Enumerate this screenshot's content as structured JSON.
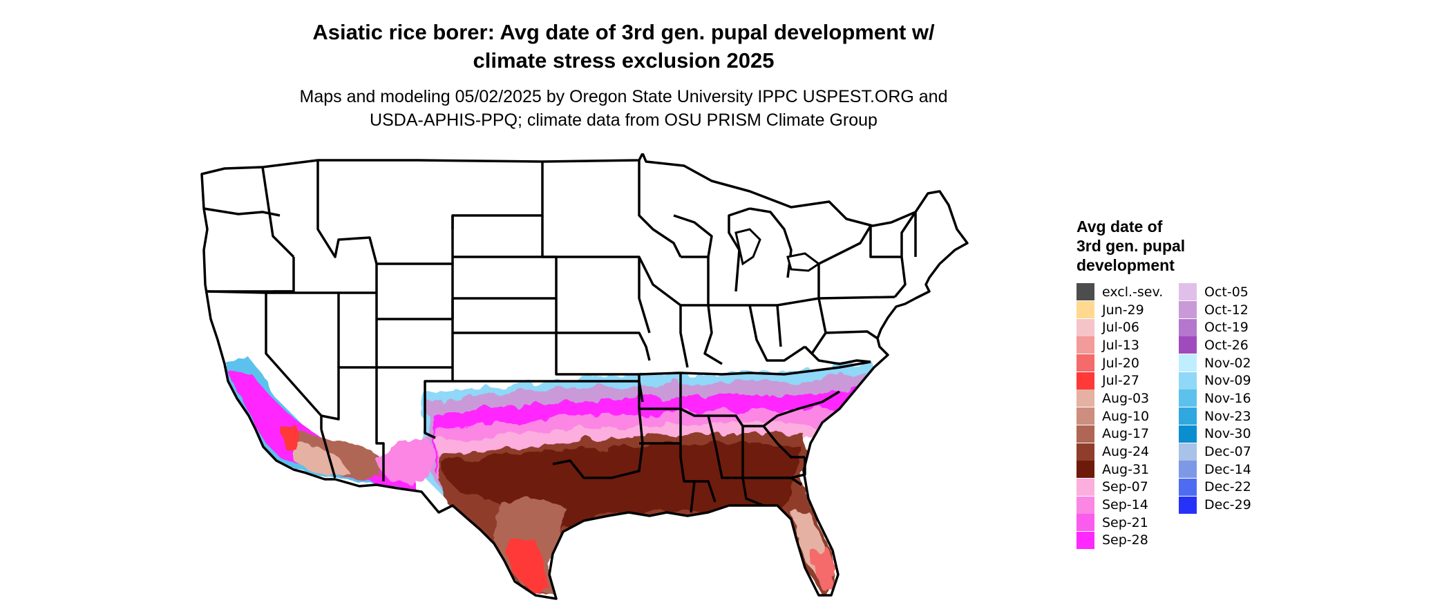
{
  "title_lines": [
    "Asiatic rice borer: Avg date of 3rd gen. pupal development w/",
    "climate stress exclusion 2025"
  ],
  "subtitle_lines": [
    "Maps and modeling 05/02/2025 by Oregon State University IPPC USPEST.ORG and",
    "USDA-APHIS-PPQ; climate data from OSU PRISM Climate Group"
  ],
  "legend": {
    "title_lines": [
      "Avg date of",
      "3rd gen. pupal",
      "development"
    ],
    "column1": [
      {
        "label": "excl.-sev.",
        "color": "#4d4d4d"
      },
      {
        "label": "Jun-29",
        "color": "#ffd98f"
      },
      {
        "label": "Jul-06",
        "color": "#f5c4c9"
      },
      {
        "label": "Jul-13",
        "color": "#f39a9a"
      },
      {
        "label": "Jul-20",
        "color": "#f56a6a"
      },
      {
        "label": "Jul-27",
        "color": "#ff3838"
      },
      {
        "label": "Aug-03",
        "color": "#e4b1a3"
      },
      {
        "label": "Aug-10",
        "color": "#cd8e7f"
      },
      {
        "label": "Aug-17",
        "color": "#b06654"
      },
      {
        "label": "Aug-24",
        "color": "#8f3e2b"
      },
      {
        "label": "Aug-31",
        "color": "#6e1a0a"
      },
      {
        "label": "Sep-07",
        "color": "#fcaedf"
      },
      {
        "label": "Sep-14",
        "color": "#fb86e4"
      },
      {
        "label": "Sep-21",
        "color": "#fa5ced"
      },
      {
        "label": "Sep-28",
        "color": "#ff28ff"
      }
    ],
    "column2": [
      {
        "label": "Oct-05",
        "color": "#e0c0e8"
      },
      {
        "label": "Oct-12",
        "color": "#c99ad7"
      },
      {
        "label": "Oct-19",
        "color": "#b477cd"
      },
      {
        "label": "Oct-26",
        "color": "#a04bbd"
      },
      {
        "label": "Nov-02",
        "color": "#bfeeff"
      },
      {
        "label": "Nov-09",
        "color": "#8fd8f7"
      },
      {
        "label": "Nov-16",
        "color": "#5cc1ec"
      },
      {
        "label": "Nov-23",
        "color": "#2fa8df"
      },
      {
        "label": "Nov-30",
        "color": "#0a8ed0"
      },
      {
        "label": "Dec-07",
        "color": "#a8c2e8"
      },
      {
        "label": "Dec-14",
        "color": "#7d99e6"
      },
      {
        "label": "Dec-22",
        "color": "#4e6cf2"
      },
      {
        "label": "Dec-29",
        "color": "#2632f7"
      }
    ]
  }
}
